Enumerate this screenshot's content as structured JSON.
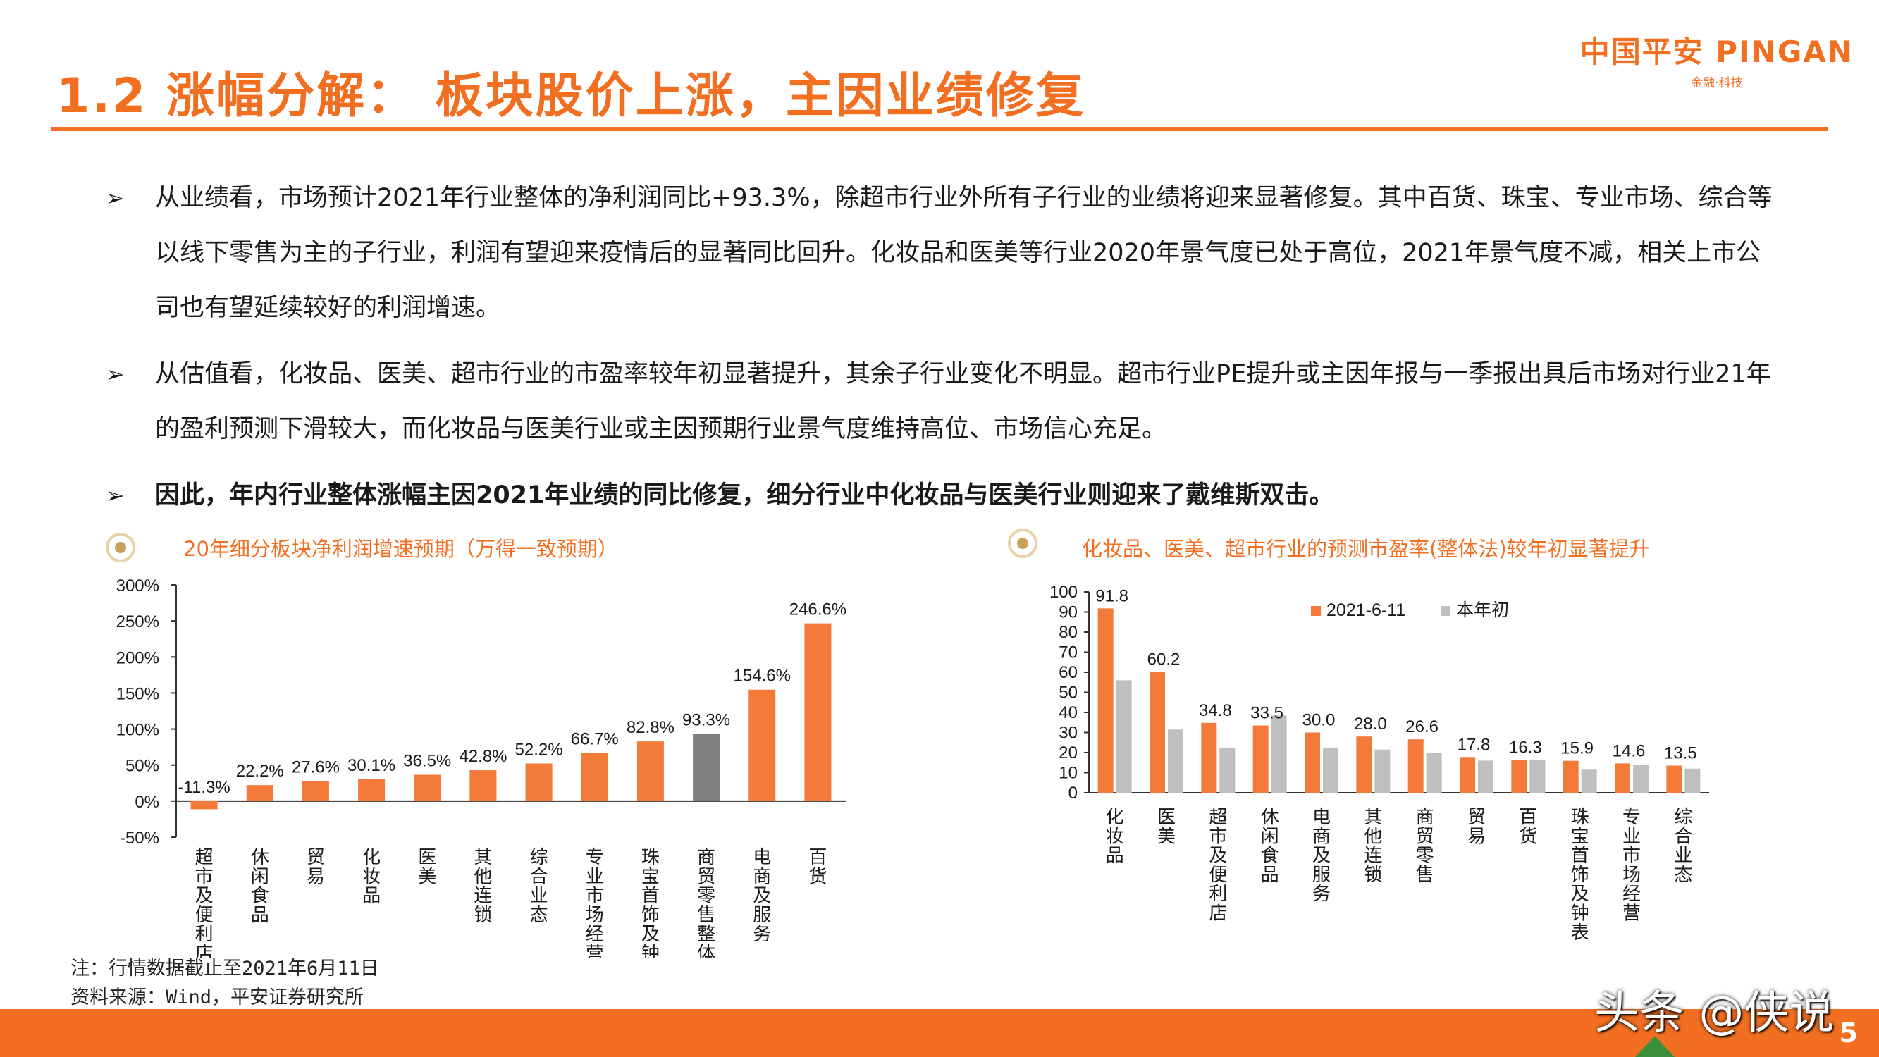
{
  "header": {
    "title": "1.2 涨幅分解： 板块股价上涨，主因业绩修复",
    "logo_main": "中国平安 PINGAN",
    "logo_sub": "金融·科技"
  },
  "bullets": [
    {
      "marker": "➢",
      "text": "从业绩看，市场预计2021年行业整体的净利润同比+93.3%，除超市行业外所有子行业的业绩将迎来显著修复。其中百货、珠宝、专业市场、综合等以线下零售为主的子行业，利润有望迎来疫情后的显著同比回升。化妆品和医美等行业2020年景气度已处于高位，2021年景气度不减，相关上市公司也有望延续较好的利润增速。"
    },
    {
      "marker": "➢",
      "text": "从估值看，化妆品、医美、超市行业的市盈率较年初显著提升，其余子行业变化不明显。超市行业PE提升或主因年报与一季报出具后市场对行业21年的盈利预测下滑较大，而化妆品与医美行业或主因预期行业景气度维持高位、市场信心充足。"
    },
    {
      "marker": "➢",
      "text": "因此，年内行业整体涨幅主因2021年业绩的同比修复，细分行业中化妆品与医美行业则迎来了戴维斯双击。"
    }
  ],
  "chart_data": [
    {
      "type": "bar",
      "title": "20年细分板块净利润增速预期（万得一致预期）",
      "categories": [
        "超市及便利店",
        "休闲食品",
        "贸易",
        "化妆品",
        "医美",
        "其他连锁",
        "综合业态",
        "专业市场经营",
        "珠宝首饰及钟表",
        "商贸零售整体",
        "电商及服务",
        "百货"
      ],
      "values": [
        -11.3,
        22.2,
        27.6,
        30.1,
        36.5,
        42.8,
        52.2,
        66.7,
        82.8,
        93.3,
        154.6,
        246.6
      ],
      "value_labels": [
        "-11.3%",
        "22.2%",
        "27.6%",
        "30.1%",
        "36.5%",
        "42.8%",
        "52.2%",
        "66.7%",
        "82.8%",
        "93.3%",
        "154.6%",
        "246.6%"
      ],
      "highlight_index": 9,
      "ylim": [
        -50,
        300
      ],
      "yticks": [
        -50,
        0,
        50,
        100,
        150,
        200,
        250,
        300
      ],
      "ytick_labels": [
        "-50%",
        "0%",
        "50%",
        "100%",
        "150%",
        "200%",
        "250%",
        "300%"
      ],
      "colors": {
        "bar": "#f47a3a",
        "highlight": "#7f7f7f"
      }
    },
    {
      "type": "bar",
      "title": "化妆品、医美、超市行业的预测市盈率(整体法)较年初显著提升",
      "categories": [
        "化妆品",
        "医美",
        "超市及便利店",
        "休闲食品",
        "电商及服务",
        "其他连锁",
        "商贸零售",
        "贸易",
        "百货",
        "珠宝首饰及钟表",
        "专业市场经营",
        "综合业态"
      ],
      "series": [
        {
          "name": "2021-6-11",
          "values": [
            91.8,
            60.2,
            34.8,
            33.5,
            30.0,
            28.0,
            26.6,
            17.8,
            16.3,
            15.9,
            14.6,
            13.5
          ],
          "color": "#f47a3a"
        },
        {
          "name": "本年初",
          "values": [
            56,
            31.5,
            22.5,
            38.5,
            22.5,
            21.5,
            20,
            16,
            16.5,
            11.5,
            14,
            12
          ],
          "color": "#bfbfbf"
        }
      ],
      "value_labels": [
        "91.8",
        "60.2",
        "34.8",
        "33.5",
        "30.0",
        "28.0",
        "26.6",
        "17.8",
        "16.3",
        "15.9",
        "14.6",
        "13.5"
      ],
      "ylim": [
        0,
        100
      ],
      "yticks": [
        0,
        10,
        20,
        30,
        40,
        50,
        60,
        70,
        80,
        90,
        100
      ],
      "legend_position": "top-center"
    }
  ],
  "notes": {
    "line1": "注：行情数据截止至2021年6月11日",
    "line2": "资料来源：Wind，平安证券研究所"
  },
  "footer": {
    "watermark": "头条 @侠说",
    "page_number": "5"
  }
}
